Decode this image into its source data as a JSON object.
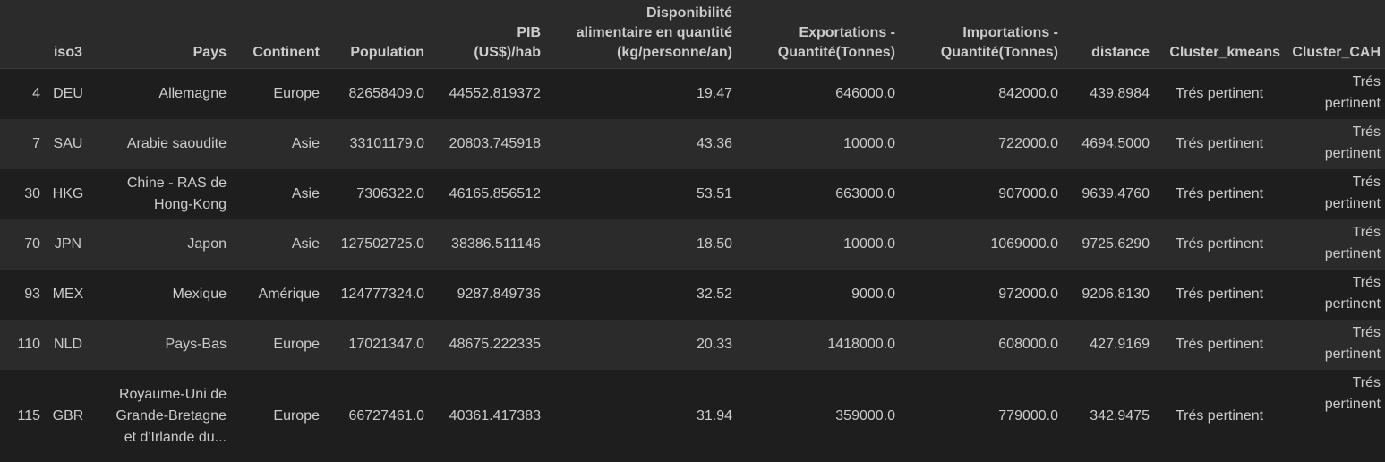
{
  "table": {
    "columns": [
      "",
      "iso3",
      "Pays",
      "Continent",
      "Population",
      "PIB\n(US$)/hab",
      "Disponibilité\nalimentaire en quantité\n(kg/personne/an)",
      "Exportations -\nQuantité(Tonnes)",
      "Importations -\nQuantité(Tonnes)",
      "distance",
      "Cluster_kmeans",
      "Cluster_CAH"
    ],
    "rows": [
      {
        "index": "4",
        "iso3": "DEU",
        "pays": "Allemagne",
        "continent": "Europe",
        "population": "82658409.0",
        "pib": "44552.819372",
        "dispo": "19.47",
        "export": "646000.0",
        "import": "842000.0",
        "distance": "439.8984",
        "kmeans": "Trés pertinent",
        "cah": "Trés pertinent"
      },
      {
        "index": "7",
        "iso3": "SAU",
        "pays": "Arabie saoudite",
        "continent": "Asie",
        "population": "33101179.0",
        "pib": "20803.745918",
        "dispo": "43.36",
        "export": "10000.0",
        "import": "722000.0",
        "distance": "4694.5000",
        "kmeans": "Trés pertinent",
        "cah": "Trés pertinent"
      },
      {
        "index": "30",
        "iso3": "HKG",
        "pays": "Chine - RAS de Hong-Kong",
        "continent": "Asie",
        "population": "7306322.0",
        "pib": "46165.856512",
        "dispo": "53.51",
        "export": "663000.0",
        "import": "907000.0",
        "distance": "9639.4760",
        "kmeans": "Trés pertinent",
        "cah": "Trés pertinent"
      },
      {
        "index": "70",
        "iso3": "JPN",
        "pays": "Japon",
        "continent": "Asie",
        "population": "127502725.0",
        "pib": "38386.511146",
        "dispo": "18.50",
        "export": "10000.0",
        "import": "1069000.0",
        "distance": "9725.6290",
        "kmeans": "Trés pertinent",
        "cah": "Trés pertinent"
      },
      {
        "index": "93",
        "iso3": "MEX",
        "pays": "Mexique",
        "continent": "Amérique",
        "population": "124777324.0",
        "pib": "9287.849736",
        "dispo": "32.52",
        "export": "9000.0",
        "import": "972000.0",
        "distance": "9206.8130",
        "kmeans": "Trés pertinent",
        "cah": "Trés pertinent"
      },
      {
        "index": "110",
        "iso3": "NLD",
        "pays": "Pays-Bas",
        "continent": "Europe",
        "population": "17021347.0",
        "pib": "48675.222335",
        "dispo": "20.33",
        "export": "1418000.0",
        "import": "608000.0",
        "distance": "427.9169",
        "kmeans": "Trés pertinent",
        "cah": "Trés pertinent"
      },
      {
        "index": "115",
        "iso3": "GBR",
        "pays": "Royaume-Uni de Grande-Bretagne et d'Irlande du...",
        "continent": "Europe",
        "population": "66727461.0",
        "pib": "40361.417383",
        "dispo": "31.94",
        "export": "359000.0",
        "import": "779000.0",
        "distance": "342.9475",
        "kmeans": "Trés pertinent",
        "cah": "Trés pertinent"
      }
    ]
  }
}
